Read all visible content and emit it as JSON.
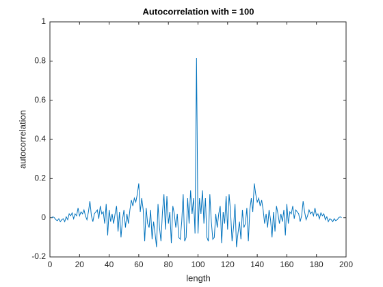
{
  "chart_data": {
    "type": "line",
    "title": "Autocorrelation with = 100",
    "xlabel": "length",
    "ylabel": "autocorrelation",
    "x": [
      1,
      2,
      3,
      4,
      5,
      6,
      7,
      8,
      9,
      10,
      11,
      12,
      13,
      14,
      15,
      16,
      17,
      18,
      19,
      20,
      21,
      22,
      23,
      24,
      25,
      26,
      27,
      28,
      29,
      30,
      31,
      32,
      33,
      34,
      35,
      36,
      37,
      38,
      39,
      40,
      41,
      42,
      43,
      44,
      45,
      46,
      47,
      48,
      49,
      50,
      51,
      52,
      53,
      54,
      55,
      56,
      57,
      58,
      59,
      60,
      61,
      62,
      63,
      64,
      65,
      66,
      67,
      68,
      69,
      70,
      71,
      72,
      73,
      74,
      75,
      76,
      77,
      78,
      79,
      80,
      81,
      82,
      83,
      84,
      85,
      86,
      87,
      88,
      89,
      90,
      91,
      92,
      93,
      94,
      95,
      96,
      97,
      98,
      99,
      100,
      101,
      102,
      103,
      104,
      105,
      106,
      107,
      108,
      109,
      110,
      111,
      112,
      113,
      114,
      115,
      116,
      117,
      118,
      119,
      120,
      121,
      122,
      123,
      124,
      125,
      126,
      127,
      128,
      129,
      130,
      131,
      132,
      133,
      134,
      135,
      136,
      137,
      138,
      139,
      140,
      141,
      142,
      143,
      144,
      145,
      146,
      147,
      148,
      149,
      150,
      151,
      152,
      153,
      154,
      155,
      156,
      157,
      158,
      159,
      160,
      161,
      162,
      163,
      164,
      165,
      166,
      167,
      168,
      169,
      170,
      171,
      172,
      173,
      174,
      175,
      176,
      177,
      178,
      179,
      180,
      181,
      182,
      183,
      184,
      185,
      186,
      187,
      188,
      189,
      190,
      191,
      192,
      193,
      194,
      195,
      196,
      197
    ],
    "series": [
      {
        "color": "#0072bd",
        "values": [
          0,
          0.005,
          0,
          -0.01,
          -0.015,
          -0.005,
          -0.02,
          -0.01,
          -0.005,
          -0.02,
          0.005,
          -0.01,
          0.02,
          0.01,
          0.025,
          -0.005,
          0.02,
          0.01,
          0.05,
          0.01,
          0.03,
          0.02,
          0.04,
          0.01,
          -0.01,
          0.03,
          0.085,
          0.01,
          -0.02,
          0.02,
          0.03,
          0.04,
          -0.005,
          0.06,
          0.02,
          0.03,
          -0.03,
          0.07,
          -0.09,
          0.04,
          -0.02,
          0.02,
          -0.03,
          0.02,
          0.06,
          -0.07,
          0.03,
          -0.1,
          -0.01,
          0.04,
          -0.05,
          0.02,
          -0.03,
          0.04,
          0.09,
          0.06,
          0.1,
          0.08,
          0.12,
          0.175,
          0.03,
          0.1,
          0.04,
          -0.12,
          0.05,
          -0.03,
          -0.05,
          0.04,
          -0.11,
          -0.02,
          -0.08,
          -0.15,
          0.07,
          -0.05,
          -0.12,
          0.03,
          0.12,
          -0.06,
          0.11,
          -0.03,
          0.03,
          -0.13,
          0.06,
          0.02,
          -0.05,
          0.02,
          -0.1,
          -0.11,
          -0.02,
          0.12,
          -0.12,
          -0.1,
          0.1,
          -0.03,
          0.14,
          0.02,
          0.1,
          -0.08,
          0.815,
          -0.08,
          0.1,
          0.02,
          0.14,
          -0.03,
          0.1,
          -0.1,
          -0.12,
          0.12,
          -0.02,
          -0.11,
          -0.1,
          0.02,
          -0.05,
          0.02,
          0.06,
          -0.13,
          0.03,
          -0.03,
          0.11,
          -0.06,
          0.12,
          0.03,
          -0.12,
          -0.05,
          0.07,
          -0.15,
          -0.08,
          -0.02,
          -0.11,
          0.04,
          -0.05,
          -0.03,
          0.05,
          -0.12,
          0.04,
          0.1,
          0.03,
          0.175,
          0.12,
          0.08,
          0.1,
          0.06,
          0.09,
          0.04,
          -0.03,
          0.02,
          -0.05,
          0.04,
          -0.01,
          -0.1,
          0.03,
          -0.07,
          0.06,
          0.02,
          -0.03,
          0.02,
          -0.02,
          0.04,
          -0.09,
          0.07,
          -0.03,
          0.03,
          0.02,
          0.06,
          -0.005,
          0.04,
          0.03,
          0.02,
          -0.02,
          0.01,
          0.085,
          0.03,
          -0.01,
          0.01,
          0.04,
          0.02,
          0.03,
          0.01,
          0.05,
          0.01,
          0.02,
          -0.005,
          0.025,
          0.01,
          0.02,
          -0.01,
          0.005,
          -0.02,
          -0.005,
          -0.01,
          -0.02,
          -0.005,
          -0.015,
          -0.01,
          0,
          0.005,
          0
        ]
      }
    ],
    "xlim": [
      0,
      200
    ],
    "xticks": [
      0,
      20,
      40,
      60,
      80,
      100,
      120,
      140,
      160,
      180,
      200
    ],
    "ylim": [
      -0.2,
      1
    ],
    "yticks": [
      -0.2,
      0,
      0.2,
      0.4,
      0.6,
      0.8,
      1
    ]
  }
}
